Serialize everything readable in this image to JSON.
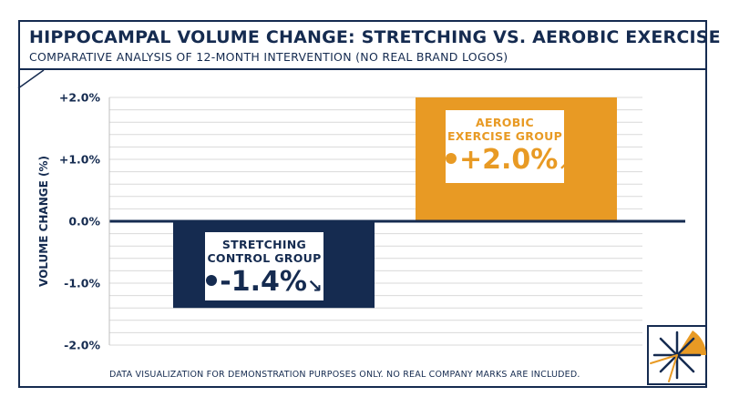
{
  "header": {
    "title": "HIPPOCAMPAL VOLUME CHANGE: STRETCHING VS. AEROBIC EXERCISE",
    "subtitle": "COMPARATIVE ANALYSIS OF 12-MONTH INTERVENTION (NO REAL BRAND LOGOS)"
  },
  "footnote": "DATA VISUALIZATION FOR DEMONSTRATION PURPOSES ONLY. NO REAL COMPANY MARKS ARE INCLUDED.",
  "colors": {
    "navy": "#152b50",
    "orange": "#e89a24",
    "grid": "#d9d9d9"
  },
  "chart_data": {
    "type": "bar",
    "title": "HIPPOCAMPAL VOLUME CHANGE: STRETCHING VS. AEROBIC EXERCISE",
    "subtitle": "COMPARATIVE ANALYSIS OF 12-MONTH INTERVENTION (NO REAL BRAND LOGOS)",
    "ylabel": "VOLUME CHANGE (%)",
    "xlabel": "",
    "ylim": [
      -2.0,
      2.0
    ],
    "yticks": [
      2.0,
      1.0,
      0.0,
      -1.0,
      -2.0
    ],
    "ytick_labels": [
      "+2.0%",
      "+1.0%",
      "0.0%",
      "-1.0%",
      "-2.0%"
    ],
    "grid": true,
    "categories": [
      "STRETCHING CONTROL GROUP",
      "AEROBIC EXERCISE GROUP"
    ],
    "values": [
      -1.4,
      2.0
    ],
    "value_labels": [
      "-1.4%",
      "+2.0%"
    ],
    "value_arrows": [
      "↘",
      "↗"
    ],
    "colors": [
      "#152b50",
      "#e89a24"
    ]
  }
}
